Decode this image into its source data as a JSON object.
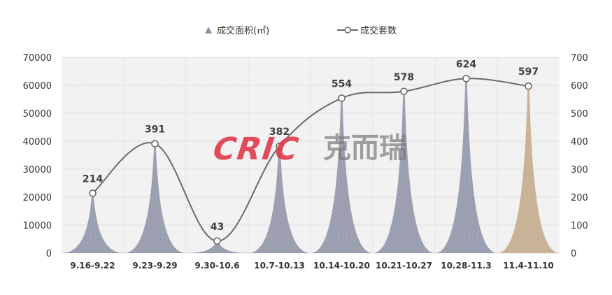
{
  "chart_data": {
    "type": "bar",
    "categories": [
      "9.16-9.22",
      "9.23-9.29",
      "9.30-10.6",
      "10.7-10.13",
      "10.14-10.20",
      "10.21-10.27",
      "10.28-11.3",
      "11.4-11.10"
    ],
    "series": [
      {
        "name": "成交面积(㎡)",
        "axis": "left",
        "style": "peak",
        "values": [
          21400,
          39100,
          4300,
          38200,
          55400,
          57800,
          62400,
          59700
        ]
      },
      {
        "name": "成交套数",
        "axis": "right",
        "style": "line",
        "values": [
          214,
          391,
          43,
          382,
          554,
          578,
          624,
          597
        ]
      }
    ],
    "y_left": {
      "min": 0,
      "max": 70000,
      "ticks": [
        "0",
        "10000",
        "20000",
        "30000",
        "40000",
        "50000",
        "60000",
        "70000"
      ]
    },
    "y_right": {
      "min": 0,
      "max": 700,
      "ticks": [
        "0",
        "100",
        "200",
        "300",
        "400",
        "500",
        "600",
        "700"
      ]
    },
    "data_labels": [
      "214",
      "391",
      "43",
      "382",
      "554",
      "578",
      "624",
      "597"
    ],
    "grid": true,
    "legend_position": "top-center",
    "colors": {
      "area": "#8a8fa3",
      "area_highlight": "#c4ae90",
      "line": "#6b6b6b",
      "marker_fill": "#ffffff",
      "grid": "#e0e0e0",
      "plot_bg": "#f2f2f2"
    },
    "watermark": {
      "latin": "CRIC",
      "cjk": "克而瑞"
    }
  }
}
